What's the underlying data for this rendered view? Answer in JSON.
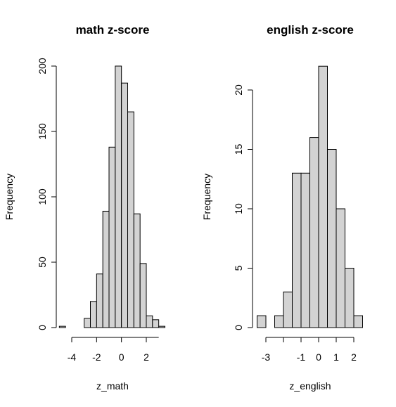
{
  "chart_data": [
    {
      "type": "bar",
      "title": "math z-score",
      "xlabel": "z_math",
      "ylabel": "Frequency",
      "bins": [
        {
          "x0": -5.0,
          "x1": -4.5,
          "count": 1
        },
        {
          "x0": -4.5,
          "x1": -4.0,
          "count": 0
        },
        {
          "x0": -4.0,
          "x1": -3.5,
          "count": 0
        },
        {
          "x0": -3.5,
          "x1": -3.0,
          "count": 0
        },
        {
          "x0": -3.0,
          "x1": -2.5,
          "count": 7
        },
        {
          "x0": -2.5,
          "x1": -2.0,
          "count": 20
        },
        {
          "x0": -2.0,
          "x1": -1.5,
          "count": 41
        },
        {
          "x0": -1.5,
          "x1": -1.0,
          "count": 89
        },
        {
          "x0": -1.0,
          "x1": -0.5,
          "count": 138
        },
        {
          "x0": -0.5,
          "x1": 0.0,
          "count": 200
        },
        {
          "x0": 0.0,
          "x1": 0.5,
          "count": 187
        },
        {
          "x0": 0.5,
          "x1": 1.0,
          "count": 165
        },
        {
          "x0": 1.0,
          "x1": 1.5,
          "count": 87
        },
        {
          "x0": 1.5,
          "x1": 2.0,
          "count": 49
        },
        {
          "x0": 2.0,
          "x1": 2.5,
          "count": 9
        },
        {
          "x0": 2.5,
          "x1": 3.0,
          "count": 6
        },
        {
          "x0": 3.0,
          "x1": 3.5,
          "count": 1
        }
      ],
      "xticks": [
        -4,
        -2,
        0,
        2
      ],
      "xtick_labels": [
        "-4",
        "-2",
        "0",
        "2"
      ],
      "xaxis_range": [
        -4,
        3
      ],
      "yticks": [
        0,
        50,
        100,
        150,
        200
      ],
      "ytick_labels": [
        "0",
        "50",
        "100",
        "150",
        "200"
      ]
    },
    {
      "type": "bar",
      "title": "english z-score",
      "xlabel": "z_english",
      "ylabel": "Frequency",
      "bins": [
        {
          "x0": -3.5,
          "x1": -3.0,
          "count": 1
        },
        {
          "x0": -3.0,
          "x1": -2.5,
          "count": 0
        },
        {
          "x0": -2.5,
          "x1": -2.0,
          "count": 1
        },
        {
          "x0": -2.0,
          "x1": -1.5,
          "count": 3
        },
        {
          "x0": -1.5,
          "x1": -1.0,
          "count": 13
        },
        {
          "x0": -1.0,
          "x1": -0.5,
          "count": 13
        },
        {
          "x0": -0.5,
          "x1": 0.0,
          "count": 16
        },
        {
          "x0": 0.0,
          "x1": 0.5,
          "count": 22
        },
        {
          "x0": 0.5,
          "x1": 1.0,
          "count": 15
        },
        {
          "x0": 1.0,
          "x1": 1.5,
          "count": 10
        },
        {
          "x0": 1.5,
          "x1": 2.0,
          "count": 5
        },
        {
          "x0": 2.0,
          "x1": 2.5,
          "count": 1
        }
      ],
      "xticks": [
        -3,
        -2,
        -1,
        0,
        1,
        2
      ],
      "xtick_labels": [
        "-3",
        "",
        "-1",
        "0",
        "1",
        "2"
      ],
      "xaxis_range": [
        -3,
        2
      ],
      "yticks": [
        0,
        5,
        10,
        15,
        20
      ],
      "ytick_labels": [
        "0",
        "5",
        "10",
        "15",
        "20"
      ]
    }
  ]
}
